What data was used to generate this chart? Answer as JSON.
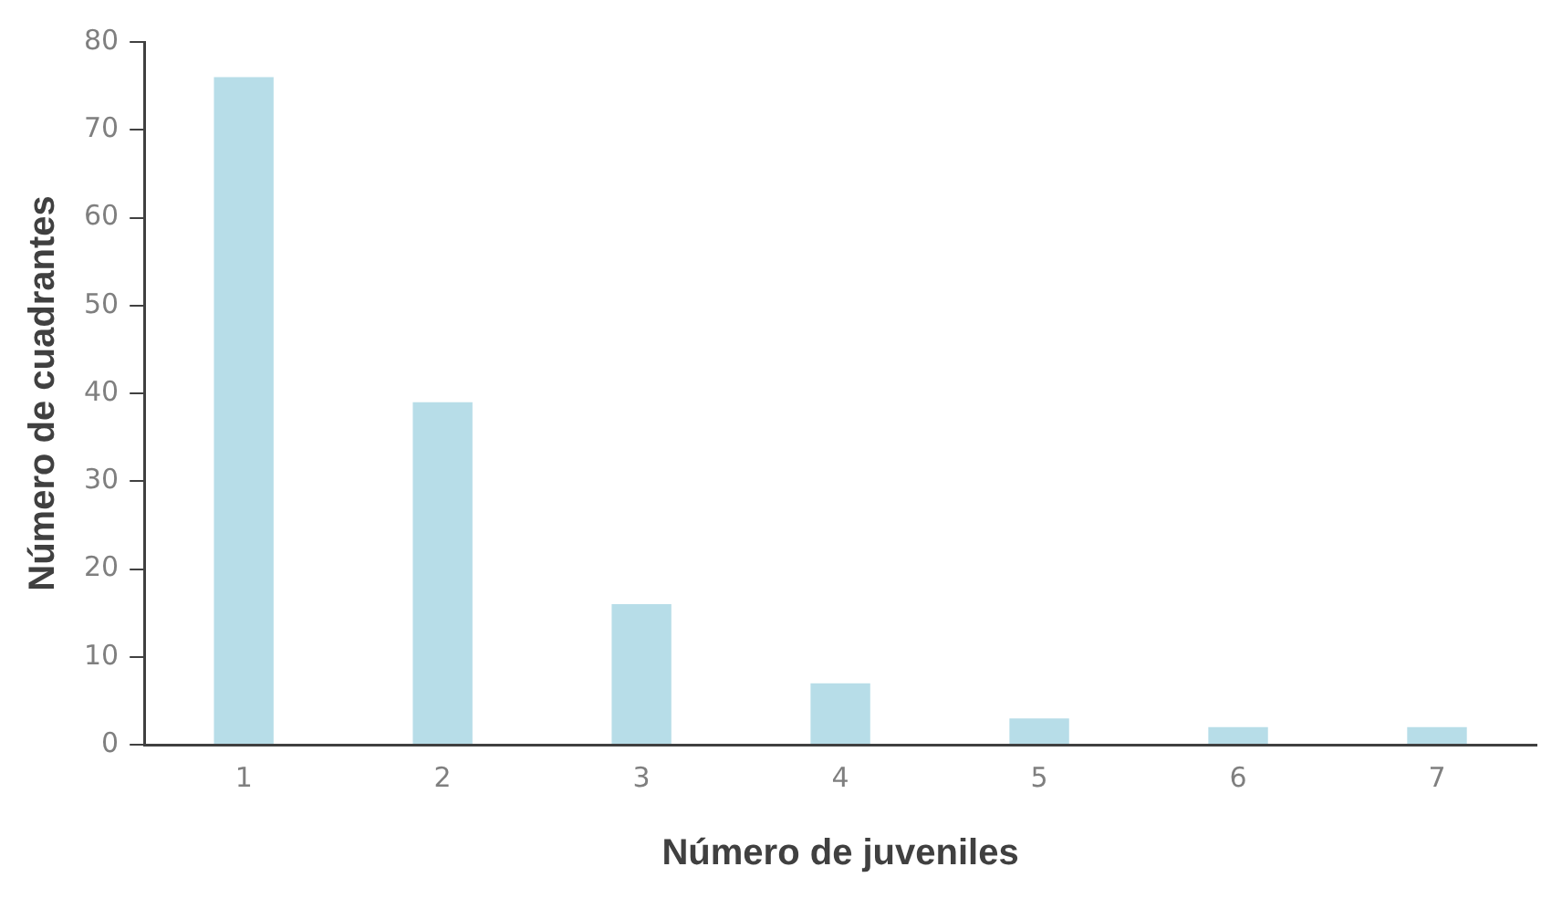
{
  "chart_data": {
    "type": "bar",
    "xlabel": "Número de juveniles",
    "ylabel": "Número de cuadrantes",
    "categories": [
      "1",
      "2",
      "3",
      "4",
      "5",
      "6",
      "7"
    ],
    "values": [
      76,
      39,
      16,
      7,
      3,
      2,
      2
    ],
    "color": "#b7dde8",
    "ylim": [
      0,
      80
    ],
    "yticks": [
      0,
      10,
      20,
      30,
      40,
      50,
      60,
      70,
      80
    ],
    "grid": false,
    "legend": false
  }
}
